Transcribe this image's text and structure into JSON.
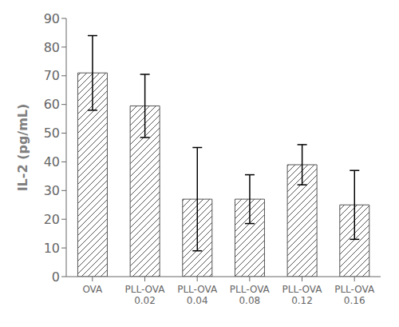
{
  "chart_data": {
    "type": "bar",
    "categories": [
      "OVA",
      "PLL-OVA\n0.02",
      "PLL-OVA\n0.04",
      "PLL-OVA\n0.08",
      "PLL-OVA\n0.12",
      "PLL-OVA\n0.16"
    ],
    "values": [
      71,
      59.5,
      27,
      27,
      39,
      25
    ],
    "errors": [
      13,
      11,
      18,
      8.5,
      7,
      12
    ],
    "color": "#555555",
    "ylabel": "IL-2 (pg/mL)",
    "ylim": [
      0,
      90
    ],
    "yticks": [
      0,
      10,
      20,
      30,
      40,
      50,
      60,
      70,
      80,
      90
    ],
    "grid": false
  }
}
